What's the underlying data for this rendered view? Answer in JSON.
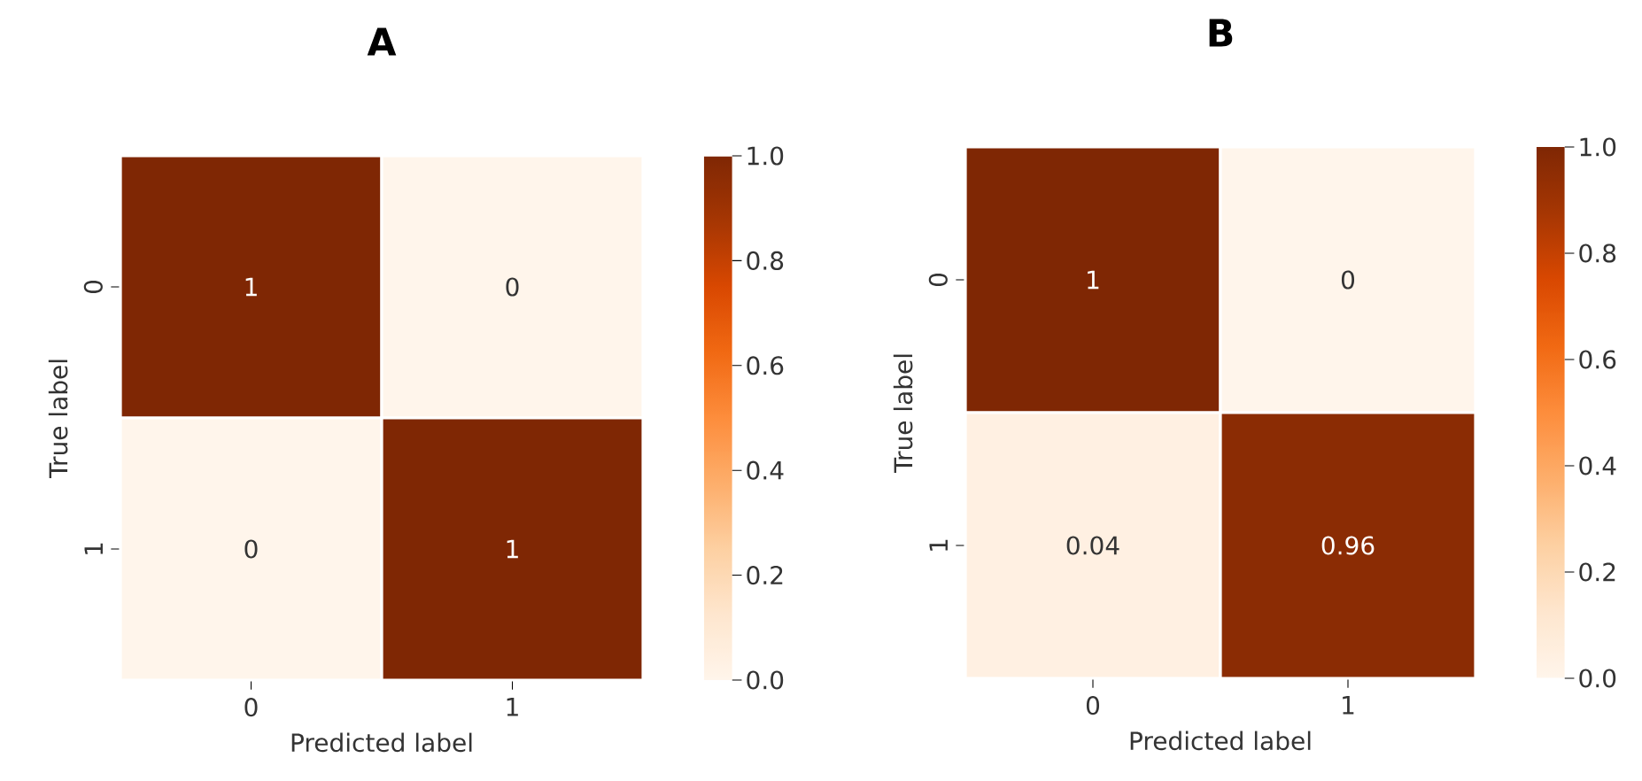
{
  "chart_data": [
    {
      "type": "heatmap",
      "title": "A",
      "xlabel": "Predicted label",
      "ylabel": "True label",
      "categories": [
        "0",
        "1"
      ],
      "y_categories": [
        "0",
        "1"
      ],
      "cells": [
        [
          1,
          0
        ],
        [
          0,
          1
        ]
      ],
      "data_labels": true,
      "clim": [
        0,
        1
      ],
      "cticks": [
        {
          "value": 0,
          "label": "0.0"
        },
        {
          "value": 0.2,
          "label": "0.2"
        },
        {
          "value": 0.4,
          "label": "0.4"
        },
        {
          "value": 0.6,
          "label": "0.6"
        },
        {
          "value": 0.8,
          "label": "0.8"
        },
        {
          "value": 1,
          "label": "1.0"
        }
      ]
    },
    {
      "type": "heatmap",
      "title": "B",
      "xlabel": "Predicted label",
      "ylabel": "True label",
      "categories": [
        "0",
        "1"
      ],
      "y_categories": [
        "0",
        "1"
      ],
      "cells": [
        [
          1,
          0
        ],
        [
          0.04,
          0.96
        ]
      ],
      "data_labels": true,
      "clim": [
        0,
        1
      ],
      "cticks": [
        {
          "value": 0,
          "label": "0.0"
        },
        {
          "value": 0.2,
          "label": "0.2"
        },
        {
          "value": 0.4,
          "label": "0.4"
        },
        {
          "value": 0.6,
          "label": "0.6"
        },
        {
          "value": 0.8,
          "label": "0.8"
        },
        {
          "value": 1,
          "label": "1.0"
        }
      ]
    }
  ]
}
